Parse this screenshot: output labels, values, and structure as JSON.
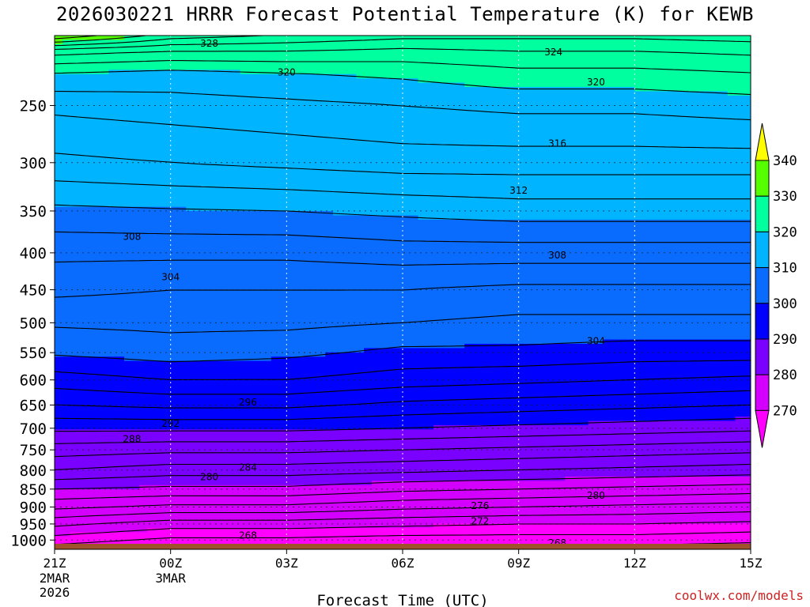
{
  "title": "2026030221 HRRR Forecast Potential Temperature (K) for KEWB",
  "credit": "coolwx.com/models",
  "colors": {
    "fill_bands": [
      "#ff00ff",
      "#d400ff",
      "#7a00ff",
      "#0000ff",
      "#0a6cff",
      "#00b4ff",
      "#00ff9f",
      "#55ff00",
      "#ffff00"
    ],
    "ground": "#a0522d",
    "contour": "#000000",
    "grid": "#ffffff"
  },
  "chart_data": {
    "type": "contour",
    "title": "2026030221 HRRR Forecast Potential Temperature (K) for KEWB",
    "xlabel": "Forecast Time (UTC)",
    "ylabel": "",
    "x_ticks": [
      {
        "label": "21Z",
        "sub": [
          "2MAR",
          "2026"
        ],
        "hour": 0
      },
      {
        "label": "00Z",
        "sub": [
          "3MAR"
        ],
        "hour": 3
      },
      {
        "label": "03Z",
        "sub": [],
        "hour": 6
      },
      {
        "label": "06Z",
        "sub": [],
        "hour": 9
      },
      {
        "label": "09Z",
        "sub": [],
        "hour": 12
      },
      {
        "label": "12Z",
        "sub": [],
        "hour": 15
      },
      {
        "label": "15Z",
        "sub": [],
        "hour": 18
      }
    ],
    "y_ticks": [
      250,
      300,
      350,
      400,
      450,
      500,
      550,
      600,
      650,
      700,
      750,
      800,
      850,
      900,
      950,
      1000
    ],
    "y_axis": "pressure (hPa), log scale, increasing downward",
    "ylim": [
      200,
      1030
    ],
    "colorbar": {
      "levels": [
        270,
        280,
        290,
        300,
        310,
        320,
        330,
        340
      ],
      "labels": [
        "270",
        "280",
        "290",
        "300",
        "310",
        "320",
        "330",
        "340"
      ],
      "extend": "both"
    },
    "contour_interval": 2,
    "contour_labels": [
      {
        "value": 328,
        "hour": 4.0,
        "pressure": 205
      },
      {
        "value": 324,
        "hour": 12.9,
        "pressure": 211
      },
      {
        "value": 320,
        "hour": 6.0,
        "pressure": 225
      },
      {
        "value": 320,
        "hour": 14.0,
        "pressure": 232
      },
      {
        "value": 316,
        "hour": 13.0,
        "pressure": 282
      },
      {
        "value": 312,
        "hour": 12.0,
        "pressure": 328
      },
      {
        "value": 308,
        "hour": 2.0,
        "pressure": 380
      },
      {
        "value": 308,
        "hour": 13.0,
        "pressure": 403
      },
      {
        "value": 304,
        "hour": 3.0,
        "pressure": 432
      },
      {
        "value": 304,
        "hour": 14.0,
        "pressure": 530
      },
      {
        "value": 296,
        "hour": 5.0,
        "pressure": 644
      },
      {
        "value": 292,
        "hour": 3.0,
        "pressure": 690
      },
      {
        "value": 288,
        "hour": 2.0,
        "pressure": 725
      },
      {
        "value": 284,
        "hour": 5.0,
        "pressure": 793
      },
      {
        "value": 280,
        "hour": 4.0,
        "pressure": 818
      },
      {
        "value": 280,
        "hour": 14.0,
        "pressure": 868
      },
      {
        "value": 276,
        "hour": 11.0,
        "pressure": 897
      },
      {
        "value": 272,
        "hour": 11.0,
        "pressure": 942
      },
      {
        "value": 268,
        "hour": 5.0,
        "pressure": 985
      },
      {
        "value": 268,
        "hour": 13.0,
        "pressure": 1010
      }
    ],
    "profiles": [
      {
        "hour": 0,
        "levels": [
          {
            "p": 1000,
            "theta": 269
          },
          {
            "p": 950,
            "theta": 272.5
          },
          {
            "p": 900,
            "theta": 276.5
          },
          {
            "p": 850,
            "theta": 280
          },
          {
            "p": 800,
            "theta": 284
          },
          {
            "p": 750,
            "theta": 287
          },
          {
            "p": 700,
            "theta": 290.5
          },
          {
            "p": 650,
            "theta": 294
          },
          {
            "p": 600,
            "theta": 297
          },
          {
            "p": 550,
            "theta": 300.3
          },
          {
            "p": 500,
            "theta": 302.3
          },
          {
            "p": 450,
            "theta": 304.5
          },
          {
            "p": 400,
            "theta": 306.5
          },
          {
            "p": 350,
            "theta": 309.5
          },
          {
            "p": 300,
            "theta": 313.5
          },
          {
            "p": 250,
            "theta": 316.5
          },
          {
            "p": 225,
            "theta": 320
          },
          {
            "p": 210,
            "theta": 325
          },
          {
            "p": 202,
            "theta": 332
          }
        ]
      },
      {
        "hour": 3,
        "levels": [
          {
            "p": 1000,
            "theta": 267.5
          },
          {
            "p": 950,
            "theta": 271
          },
          {
            "p": 900,
            "theta": 275.5
          },
          {
            "p": 850,
            "theta": 279.5
          },
          {
            "p": 800,
            "theta": 283
          },
          {
            "p": 750,
            "theta": 286.5
          },
          {
            "p": 700,
            "theta": 290.5
          },
          {
            "p": 650,
            "theta": 294.5
          },
          {
            "p": 600,
            "theta": 298
          },
          {
            "p": 550,
            "theta": 301
          },
          {
            "p": 500,
            "theta": 302.5
          },
          {
            "p": 450,
            "theta": 304
          },
          {
            "p": 400,
            "theta": 306.5
          },
          {
            "p": 350,
            "theta": 309.8
          },
          {
            "p": 300,
            "theta": 314
          },
          {
            "p": 250,
            "theta": 317
          },
          {
            "p": 225,
            "theta": 319.5
          },
          {
            "p": 210,
            "theta": 324
          },
          {
            "p": 202,
            "theta": 328
          }
        ]
      },
      {
        "hour": 6,
        "levels": [
          {
            "p": 1000,
            "theta": 267.5
          },
          {
            "p": 950,
            "theta": 271
          },
          {
            "p": 900,
            "theta": 275.5
          },
          {
            "p": 850,
            "theta": 279.5
          },
          {
            "p": 800,
            "theta": 283
          },
          {
            "p": 750,
            "theta": 286.5
          },
          {
            "p": 700,
            "theta": 290.5
          },
          {
            "p": 650,
            "theta": 294.5
          },
          {
            "p": 600,
            "theta": 298
          },
          {
            "p": 550,
            "theta": 300.5
          },
          {
            "p": 500,
            "theta": 302.5
          },
          {
            "p": 450,
            "theta": 304
          },
          {
            "p": 400,
            "theta": 306.5
          },
          {
            "p": 350,
            "theta": 310
          },
          {
            "p": 300,
            "theta": 314.5
          },
          {
            "p": 250,
            "theta": 317.5
          },
          {
            "p": 225,
            "theta": 320
          },
          {
            "p": 210,
            "theta": 324
          },
          {
            "p": 202,
            "theta": 327
          }
        ]
      },
      {
        "hour": 9,
        "levels": [
          {
            "p": 1000,
            "theta": 267
          },
          {
            "p": 950,
            "theta": 270.5
          },
          {
            "p": 900,
            "theta": 274.5
          },
          {
            "p": 850,
            "theta": 278.5
          },
          {
            "p": 800,
            "theta": 282.5
          },
          {
            "p": 750,
            "theta": 286
          },
          {
            "p": 700,
            "theta": 290
          },
          {
            "p": 650,
            "theta": 293.5
          },
          {
            "p": 600,
            "theta": 297
          },
          {
            "p": 550,
            "theta": 299.5
          },
          {
            "p": 500,
            "theta": 302
          },
          {
            "p": 450,
            "theta": 304
          },
          {
            "p": 400,
            "theta": 307
          },
          {
            "p": 350,
            "theta": 310.5
          },
          {
            "p": 300,
            "theta": 315
          },
          {
            "p": 250,
            "theta": 318
          },
          {
            "p": 225,
            "theta": 320.5
          },
          {
            "p": 210,
            "theta": 323.5
          },
          {
            "p": 202,
            "theta": 326
          }
        ]
      },
      {
        "hour": 12,
        "levels": [
          {
            "p": 1000,
            "theta": 267
          },
          {
            "p": 950,
            "theta": 270
          },
          {
            "p": 900,
            "theta": 274
          },
          {
            "p": 850,
            "theta": 278
          },
          {
            "p": 800,
            "theta": 282
          },
          {
            "p": 750,
            "theta": 285.5
          },
          {
            "p": 700,
            "theta": 289.5
          },
          {
            "p": 650,
            "theta": 293
          },
          {
            "p": 600,
            "theta": 296.5
          },
          {
            "p": 550,
            "theta": 299.5
          },
          {
            "p": 500,
            "theta": 301.5
          },
          {
            "p": 450,
            "theta": 303.5
          },
          {
            "p": 400,
            "theta": 307
          },
          {
            "p": 350,
            "theta": 311
          },
          {
            "p": 300,
            "theta": 315
          },
          {
            "p": 250,
            "theta": 318.5
          },
          {
            "p": 225,
            "theta": 321.5
          },
          {
            "p": 210,
            "theta": 324
          },
          {
            "p": 202,
            "theta": 326
          }
        ]
      },
      {
        "hour": 15,
        "levels": [
          {
            "p": 1000,
            "theta": 267
          },
          {
            "p": 950,
            "theta": 270
          },
          {
            "p": 900,
            "theta": 273.5
          },
          {
            "p": 850,
            "theta": 277.5
          },
          {
            "p": 800,
            "theta": 281.5
          },
          {
            "p": 750,
            "theta": 285
          },
          {
            "p": 700,
            "theta": 289
          },
          {
            "p": 650,
            "theta": 292.5
          },
          {
            "p": 600,
            "theta": 296
          },
          {
            "p": 550,
            "theta": 299
          },
          {
            "p": 500,
            "theta": 301.5
          },
          {
            "p": 450,
            "theta": 303.5
          },
          {
            "p": 400,
            "theta": 307
          },
          {
            "p": 350,
            "theta": 311
          },
          {
            "p": 300,
            "theta": 315
          },
          {
            "p": 250,
            "theta": 318.5
          },
          {
            "p": 225,
            "theta": 321.5
          },
          {
            "p": 210,
            "theta": 324
          },
          {
            "p": 202,
            "theta": 326
          }
        ]
      },
      {
        "hour": 18,
        "levels": [
          {
            "p": 1000,
            "theta": 266.5
          },
          {
            "p": 950,
            "theta": 269.5
          },
          {
            "p": 900,
            "theta": 273
          },
          {
            "p": 850,
            "theta": 277
          },
          {
            "p": 800,
            "theta": 281
          },
          {
            "p": 750,
            "theta": 284.5
          },
          {
            "p": 700,
            "theta": 288.5
          },
          {
            "p": 650,
            "theta": 292
          },
          {
            "p": 600,
            "theta": 295.5
          },
          {
            "p": 550,
            "theta": 299
          },
          {
            "p": 500,
            "theta": 301.5
          },
          {
            "p": 450,
            "theta": 303.5
          },
          {
            "p": 400,
            "theta": 307
          },
          {
            "p": 350,
            "theta": 311
          },
          {
            "p": 300,
            "theta": 315
          },
          {
            "p": 250,
            "theta": 319
          },
          {
            "p": 225,
            "theta": 322
          },
          {
            "p": 210,
            "theta": 324.5
          },
          {
            "p": 202,
            "theta": 326.5
          }
        ]
      }
    ]
  }
}
